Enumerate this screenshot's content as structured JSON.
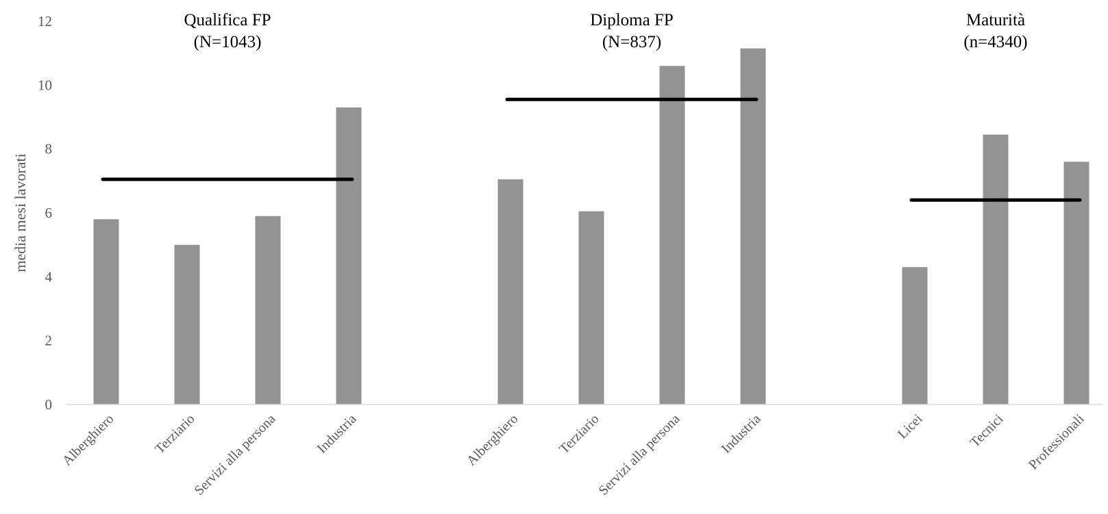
{
  "chart_data": {
    "type": "bar",
    "ylabel": "media mesi lavorati",
    "ylim": [
      0,
      12
    ],
    "yticks": [
      "0",
      "2",
      "4",
      "6",
      "8",
      "10",
      "12"
    ],
    "grid": false,
    "groups": [
      {
        "title_line1": "Qualifica FP",
        "title_line2": "(N=1043)",
        "categories": [
          "Alberghiero",
          "Terziario",
          "Servizi alla persona",
          "Industria"
        ],
        "values": [
          5.8,
          5.0,
          5.9,
          9.3
        ],
        "mean": 7.05
      },
      {
        "title_line1": "Diploma FP",
        "title_line2": "(N=837)",
        "categories": [
          "Alberghiero",
          "Terziario",
          "Servizi alla persona",
          "Industria"
        ],
        "values": [
          7.05,
          6.05,
          10.6,
          11.15
        ],
        "mean": 9.55
      },
      {
        "title_line1": "Maturità",
        "title_line2": "(n=4340)",
        "categories": [
          "Licei",
          "Tecnici",
          "Professionali"
        ],
        "values": [
          4.3,
          8.45,
          7.6
        ],
        "mean": 6.4
      }
    ],
    "colors": {
      "bar": "#939393",
      "mean_line": "#000000",
      "axis": "#d9d9d9"
    }
  }
}
